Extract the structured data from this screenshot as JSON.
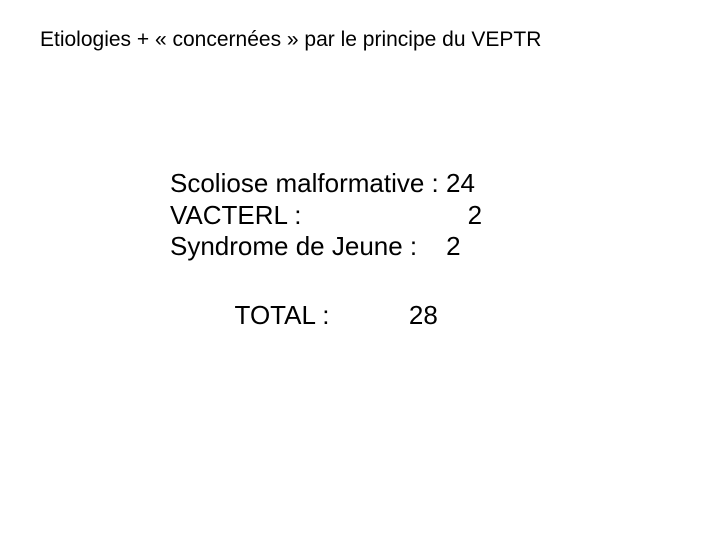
{
  "title": "Etiologies + « concernées » par le principe du VEPTR",
  "rows": [
    {
      "label": "Scoliose malformative :",
      "value": "24"
    },
    {
      "label": "VACTERL :",
      "value": "2"
    },
    {
      "label": "Syndrome de Jeune :",
      "value": "2"
    }
  ],
  "total": {
    "label": "TOTAL :",
    "value": "28"
  },
  "style": {
    "background_color": "#ffffff",
    "text_color": "#000000",
    "title_fontsize": 21,
    "body_fontsize": 26,
    "font_family": "Arial"
  }
}
